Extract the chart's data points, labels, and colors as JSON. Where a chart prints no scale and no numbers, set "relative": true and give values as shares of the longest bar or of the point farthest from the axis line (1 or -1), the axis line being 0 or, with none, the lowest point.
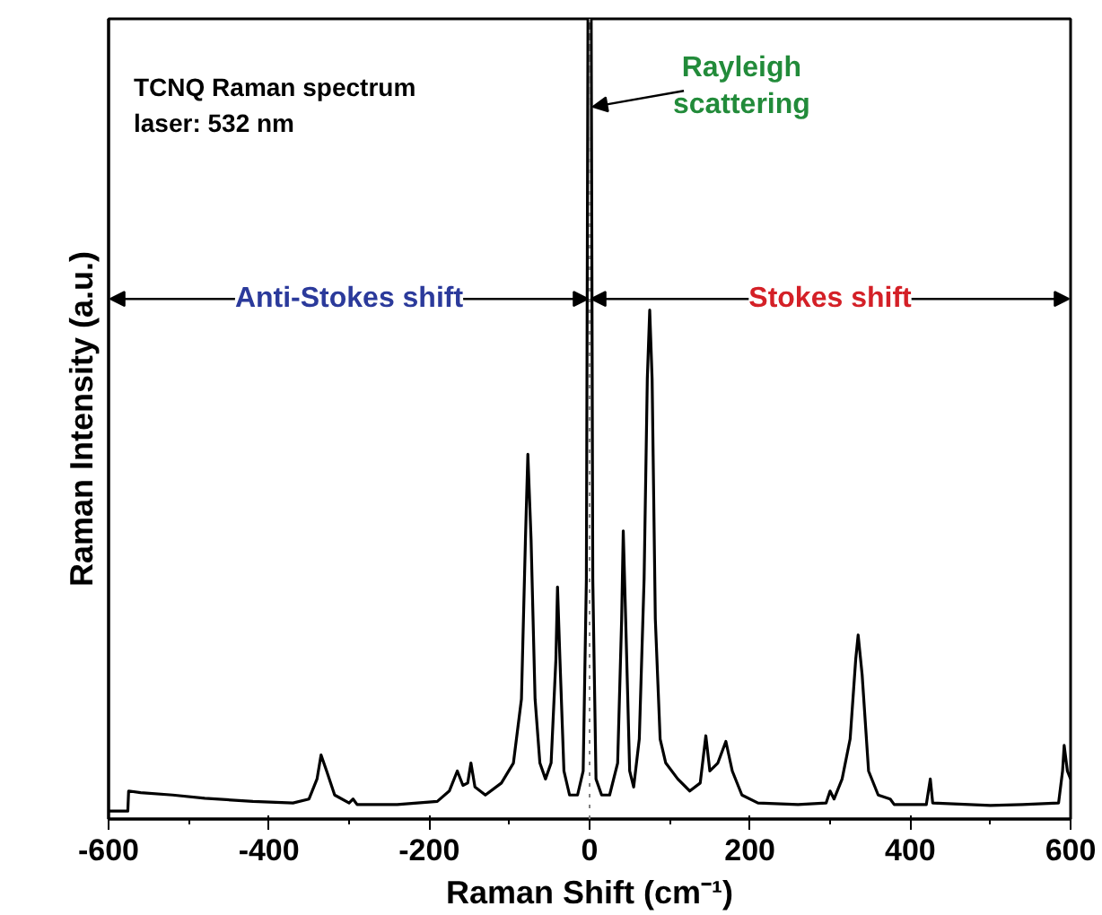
{
  "chart_data": {
    "type": "line",
    "relative": true,
    "xlabel": "Raman Shift (cm⁻¹)",
    "ylabel": "Raman Intensity (a.u.)",
    "xlim": [
      -600,
      600
    ],
    "xticks": [
      -600,
      -400,
      -200,
      0,
      200,
      400,
      600
    ],
    "grid": false,
    "marker": "none",
    "line_style": "solid",
    "tick_labels": "x",
    "ref_lines": [
      {
        "axis": "x",
        "value": 0,
        "line_style": "dotted",
        "color": "#808080"
      }
    ],
    "annotations": [
      "TCNQ Raman spectrum",
      "laser: 532 nm",
      "Anti-Stokes shift",
      "Stokes shift",
      "Rayleigh\nscattering"
    ],
    "series": [
      {
        "color": "#000000",
        "x": [
          -600,
          -576,
          -575,
          -560,
          -520,
          -480,
          -420,
          -370,
          -350,
          -340,
          -335,
          -328,
          -318,
          -300,
          -295,
          -290,
          -240,
          -190,
          -175,
          -165,
          -158,
          -152,
          -148,
          -143,
          -130,
          -110,
          -95,
          -85,
          -80,
          -77,
          -73,
          -68,
          -62,
          -55,
          -48,
          -42,
          -40,
          -37,
          -32,
          -25,
          -15,
          -8,
          -4,
          -2,
          2,
          4,
          8,
          15,
          25,
          35,
          40,
          42,
          45,
          50,
          55,
          62,
          68,
          72,
          75,
          78,
          82,
          88,
          95,
          110,
          125,
          138,
          145,
          150,
          160,
          170,
          178,
          190,
          210,
          260,
          295,
          300,
          305,
          315,
          325,
          332,
          335,
          340,
          348,
          360,
          375,
          380,
          420,
          425,
          428,
          500,
          540,
          585,
          590,
          592,
          596,
          600
        ],
        "values": [
          0.01,
          0.01,
          0.035,
          0.033,
          0.03,
          0.026,
          0.022,
          0.02,
          0.025,
          0.05,
          0.08,
          0.06,
          0.03,
          0.02,
          0.025,
          0.018,
          0.018,
          0.022,
          0.035,
          0.06,
          0.042,
          0.045,
          0.07,
          0.04,
          0.03,
          0.045,
          0.07,
          0.15,
          0.35,
          0.456,
          0.35,
          0.15,
          0.07,
          0.05,
          0.07,
          0.2,
          0.29,
          0.2,
          0.06,
          0.03,
          0.03,
          0.06,
          0.3,
          1.0,
          1.0,
          0.3,
          0.05,
          0.03,
          0.03,
          0.07,
          0.25,
          0.36,
          0.25,
          0.06,
          0.04,
          0.1,
          0.3,
          0.55,
          0.636,
          0.55,
          0.25,
          0.1,
          0.07,
          0.05,
          0.035,
          0.045,
          0.104,
          0.06,
          0.07,
          0.097,
          0.06,
          0.03,
          0.02,
          0.018,
          0.02,
          0.035,
          0.025,
          0.05,
          0.1,
          0.2,
          0.23,
          0.18,
          0.06,
          0.03,
          0.025,
          0.018,
          0.018,
          0.05,
          0.02,
          0.017,
          0.018,
          0.02,
          0.06,
          0.092,
          0.06,
          0.05
        ]
      }
    ]
  }
}
